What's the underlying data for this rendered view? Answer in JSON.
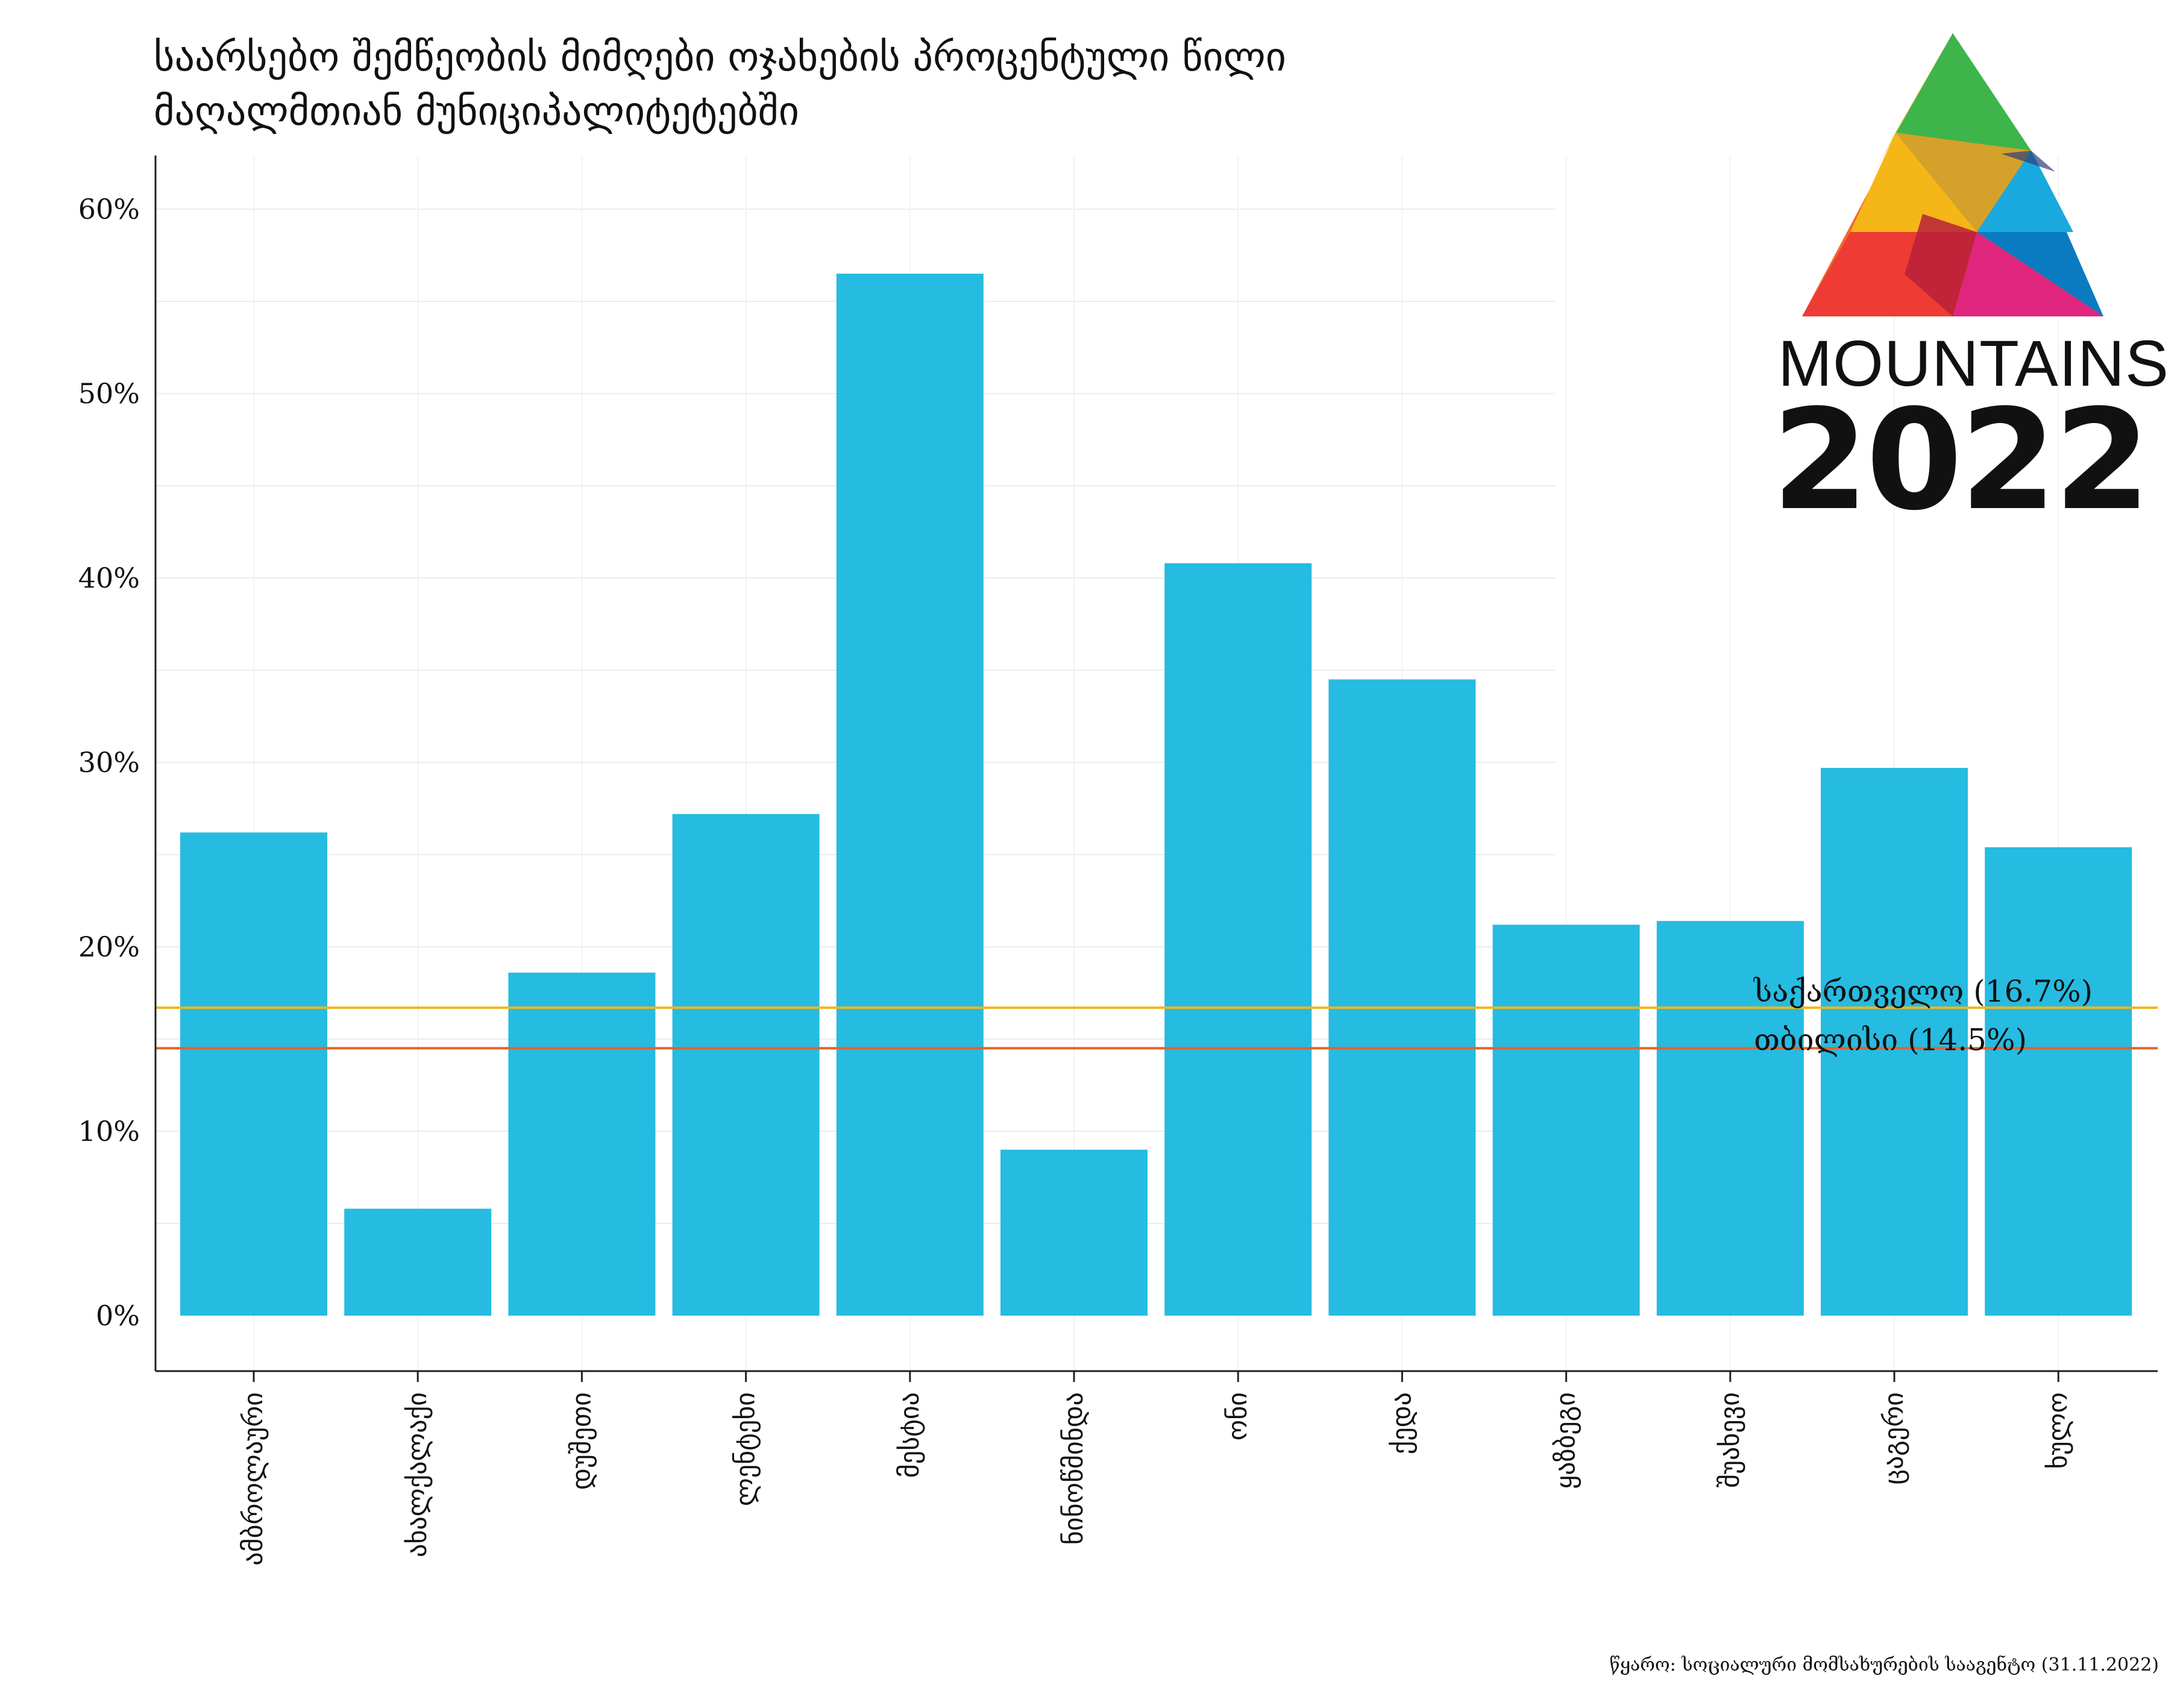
{
  "title": {
    "line1": "საარსებო შემწეობის მიმღები ოჯახების პროცენტული წილი",
    "line2": "მაღალმთიან მუნიციპალიტეტებში"
  },
  "logo": {
    "word": "MOUNTAINS",
    "year": "2022"
  },
  "source": "წყარო: სოციალური მომსახურების სააგენტო (31.11.2022)",
  "chart_data": {
    "type": "bar",
    "categories": [
      "ამბროლაური",
      "ახალქალაქი",
      "დუშეთი",
      "ლენტეხი",
      "მესტია",
      "ნინოწმინდა",
      "ონი",
      "ქედა",
      "ყაზბეგი",
      "შუახევი",
      "ცაგერი",
      "ხულო"
    ],
    "values": [
      26.2,
      5.8,
      18.6,
      27.2,
      56.5,
      9.0,
      40.8,
      34.5,
      21.2,
      21.4,
      29.7,
      25.4
    ],
    "ylim": [
      0,
      63
    ],
    "yticks": [
      0,
      10,
      20,
      30,
      40,
      50,
      60
    ],
    "ytick_labels": [
      "0%",
      "10%",
      "20%",
      "30%",
      "40%",
      "50%",
      "60%"
    ],
    "grid": true,
    "bar_color": "#26bbe1",
    "reference_lines": [
      {
        "label": "საქართველო (16.7%)",
        "value": 16.7,
        "color": "#f0b81f"
      },
      {
        "label": "თბილისი (14.5%)",
        "value": 14.5,
        "color": "#e8622a"
      }
    ]
  }
}
